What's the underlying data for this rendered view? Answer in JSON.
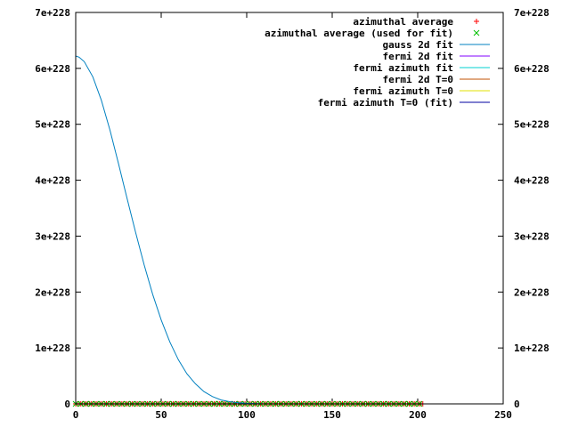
{
  "chart_data": {
    "type": "line",
    "xlim": [
      0,
      250
    ],
    "ylim": [
      0,
      7
    ],
    "y_multiplier_label": "e+228",
    "x_ticks": [
      {
        "value": 0,
        "label": "0"
      },
      {
        "value": 50,
        "label": "50"
      },
      {
        "value": 100,
        "label": "100"
      },
      {
        "value": 150,
        "label": "150"
      },
      {
        "value": 200,
        "label": "200"
      },
      {
        "value": 250,
        "label": "250"
      }
    ],
    "y_ticks": [
      {
        "value": 0,
        "label": "0"
      },
      {
        "value": 1,
        "label": "1e+228"
      },
      {
        "value": 2,
        "label": "2e+228"
      },
      {
        "value": 3,
        "label": "3e+228"
      },
      {
        "value": 4,
        "label": "4e+228"
      },
      {
        "value": 5,
        "label": "5e+228"
      },
      {
        "value": 6,
        "label": "6e+228"
      },
      {
        "value": 7,
        "label": "7e+228"
      }
    ],
    "grid": false,
    "legend_position": "top-right",
    "series": [
      {
        "name": "azimuthal average",
        "style": "points",
        "marker": "plus",
        "color": "#ff0000",
        "x_range": [
          0,
          203
        ],
        "x_step": 1,
        "y_constant": 0
      },
      {
        "name": "azimuthal average (used for fit)",
        "style": "points",
        "marker": "cross",
        "color": "#00c000",
        "x_range": [
          0,
          203
        ],
        "x_step": 3,
        "y_constant": 0
      },
      {
        "name": "gauss 2d fit",
        "style": "line",
        "color": "#0080c0",
        "x": [
          0,
          2,
          5,
          10,
          15,
          20,
          25,
          30,
          35,
          40,
          45,
          50,
          55,
          60,
          65,
          70,
          75,
          80,
          85,
          90,
          95,
          100,
          110,
          120,
          150,
          200
        ],
        "y": [
          6.22,
          6.2,
          6.12,
          5.85,
          5.43,
          4.9,
          4.3,
          3.68,
          3.07,
          2.49,
          1.96,
          1.5,
          1.11,
          0.79,
          0.54,
          0.36,
          0.22,
          0.13,
          0.07,
          0.04,
          0.02,
          0.01,
          0.0,
          0.0,
          0.0,
          0.0
        ]
      },
      {
        "name": "fermi 2d fit",
        "style": "line",
        "color": "#8000ff",
        "x": [],
        "y": []
      },
      {
        "name": "fermi azimuth fit",
        "style": "line",
        "color": "#00d0d0",
        "x": [],
        "y": []
      },
      {
        "name": "fermi 2d T=0",
        "style": "line",
        "color": "#c05000",
        "x": [],
        "y": []
      },
      {
        "name": "fermi azimuth T=0",
        "style": "line",
        "color": "#e0e000",
        "x": [],
        "y": []
      },
      {
        "name": "fermi azimuth T=0 (fit)",
        "style": "line",
        "color": "#0000a0",
        "x": [],
        "y": []
      }
    ]
  }
}
